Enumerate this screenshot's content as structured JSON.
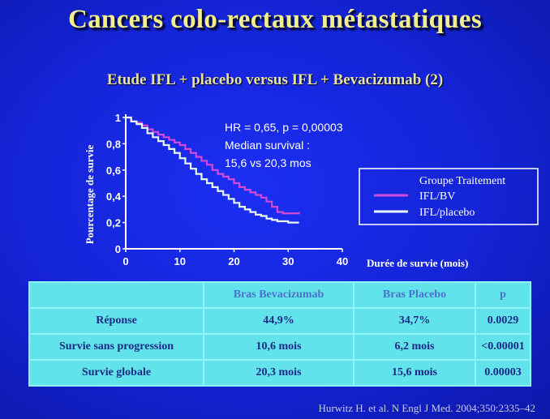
{
  "slide": {
    "title": "Cancers colo-rectaux métastatiques",
    "subtitle": "Etude IFL + placebo versus IFL + Bevacizumab (2)",
    "citation": "Hurwitz H. et al. N Engl J Med. 2004;350:2335–42"
  },
  "chart_data": {
    "type": "line",
    "xlabel": "Durée de survie (mois)",
    "ylabel": "Pourcentage de survie",
    "xlim": [
      0,
      40
    ],
    "ylim": [
      0,
      1
    ],
    "x_ticks": [
      "0",
      "10",
      "20",
      "30",
      "40"
    ],
    "y_ticks": [
      "0",
      "0,2",
      "0,4",
      "0,6",
      "0,8",
      "1"
    ],
    "annotation": [
      "HR = 0,65, p = 0,00003",
      "Median survival :",
      "15,6 vs 20,3 mos"
    ],
    "legend_title": "Groupe Traitement",
    "legend_position": "right",
    "series": [
      {
        "name": "IFL/BV",
        "color": "#d24ad8",
        "x": [
          0,
          1,
          2,
          3,
          4,
          5,
          6,
          7,
          8,
          9,
          10,
          11,
          12,
          13,
          14,
          15,
          16,
          17,
          18,
          19,
          20,
          21,
          22,
          23,
          24,
          25,
          26,
          27,
          28,
          29,
          30,
          31,
          32
        ],
        "y": [
          1.0,
          0.97,
          0.96,
          0.94,
          0.91,
          0.89,
          0.87,
          0.85,
          0.83,
          0.81,
          0.79,
          0.76,
          0.73,
          0.7,
          0.67,
          0.64,
          0.6,
          0.57,
          0.55,
          0.53,
          0.5,
          0.47,
          0.45,
          0.43,
          0.41,
          0.39,
          0.36,
          0.32,
          0.28,
          0.27,
          0.27,
          0.27,
          0.28
        ]
      },
      {
        "name": "IFL/placebo",
        "color": "#e8f6f4",
        "x": [
          0,
          1,
          2,
          3,
          4,
          5,
          6,
          7,
          8,
          9,
          10,
          11,
          12,
          13,
          14,
          15,
          16,
          17,
          18,
          19,
          20,
          21,
          22,
          23,
          24,
          25,
          26,
          27,
          28,
          29,
          30,
          31,
          32
        ],
        "y": [
          1.0,
          0.97,
          0.95,
          0.92,
          0.88,
          0.85,
          0.82,
          0.79,
          0.76,
          0.73,
          0.69,
          0.65,
          0.61,
          0.57,
          0.53,
          0.5,
          0.47,
          0.44,
          0.41,
          0.38,
          0.35,
          0.32,
          0.3,
          0.28,
          0.26,
          0.25,
          0.23,
          0.22,
          0.21,
          0.21,
          0.2,
          0.2,
          0.2
        ]
      }
    ]
  },
  "table": {
    "headers": [
      "",
      "Bras Bevacizumab",
      "Bras Placebo",
      "p"
    ],
    "rows": [
      [
        "Réponse",
        "44,9%",
        "34,7%",
        "0.0029"
      ],
      [
        "Survie sans progression",
        "10,6 mois",
        "6,2 mois",
        "<0.00001"
      ],
      [
        "Survie globale",
        "20,3 mois",
        "15,6 mois",
        "0.00003"
      ]
    ]
  },
  "colors": {
    "background": "#1424d6",
    "title": "#f2ee8c",
    "table_background": "#62e3ec",
    "table_text": "#1b2a86"
  }
}
